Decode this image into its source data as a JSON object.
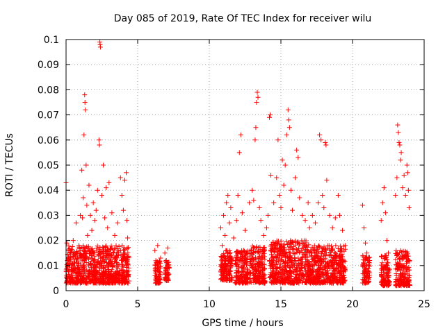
{
  "chart_data": {
    "type": "scatter",
    "title": "Day 085 of 2019, Rate Of TEC Index for receiver wilu",
    "xlabel": "GPS time / hours",
    "ylabel": "ROTI / TECUs",
    "xlim": [
      0,
      25
    ],
    "ylim": [
      0,
      0.1
    ],
    "xticks": [
      0,
      5,
      10,
      15,
      20,
      25
    ],
    "xtick_labels": [
      "0",
      "5",
      "10",
      "15",
      "20",
      "25"
    ],
    "yticks": [
      0,
      0.01,
      0.02,
      0.03,
      0.04,
      0.05,
      0.06,
      0.07,
      0.08,
      0.09,
      0.1
    ],
    "ytick_labels": [
      "0",
      "0.01",
      "0.02",
      "0.03",
      "0.04",
      "0.05",
      "0.06",
      "0.07",
      "0.08",
      "0.09",
      "0.1"
    ],
    "grid": true,
    "marker": "+",
    "series_color": "#ff0000",
    "series": [
      {
        "name": "ROTI",
        "points": [
          [
            0.0,
            0.043
          ],
          [
            0.05,
            0.019
          ],
          [
            0.1,
            0.012
          ],
          [
            0.2,
            0.008
          ],
          [
            0.3,
            0.015
          ],
          [
            0.4,
            0.011
          ],
          [
            0.5,
            0.02
          ],
          [
            0.6,
            0.009
          ],
          [
            0.7,
            0.027
          ],
          [
            0.8,
            0.013
          ],
          [
            0.9,
            0.018
          ],
          [
            1.0,
            0.03
          ],
          [
            1.1,
            0.048
          ],
          [
            1.15,
            0.029
          ],
          [
            1.2,
            0.037
          ],
          [
            1.25,
            0.062
          ],
          [
            1.3,
            0.078
          ],
          [
            1.32,
            0.075
          ],
          [
            1.35,
            0.072
          ],
          [
            1.4,
            0.05
          ],
          [
            1.45,
            0.034
          ],
          [
            1.5,
            0.022
          ],
          [
            1.6,
            0.042
          ],
          [
            1.7,
            0.03
          ],
          [
            1.8,
            0.024
          ],
          [
            1.9,
            0.035
          ],
          [
            2.0,
            0.028
          ],
          [
            2.1,
            0.032
          ],
          [
            2.2,
            0.04
          ],
          [
            2.3,
            0.06
          ],
          [
            2.33,
            0.058
          ],
          [
            2.36,
            0.099
          ],
          [
            2.38,
            0.098
          ],
          [
            2.4,
            0.097
          ],
          [
            2.5,
            0.038
          ],
          [
            2.6,
            0.05
          ],
          [
            2.7,
            0.029
          ],
          [
            2.8,
            0.041
          ],
          [
            2.9,
            0.025
          ],
          [
            3.0,
            0.043
          ],
          [
            3.2,
            0.031
          ],
          [
            3.4,
            0.022
          ],
          [
            3.6,
            0.027
          ],
          [
            3.8,
            0.045
          ],
          [
            3.9,
            0.038
          ],
          [
            4.0,
            0.032
          ],
          [
            4.1,
            0.044
          ],
          [
            4.2,
            0.047
          ],
          [
            4.25,
            0.028
          ],
          [
            4.3,
            0.021
          ],
          [
            6.2,
            0.016
          ],
          [
            6.3,
            0.011
          ],
          [
            6.4,
            0.018
          ],
          [
            6.5,
            0.009
          ],
          [
            6.6,
            0.013
          ],
          [
            6.9,
            0.015
          ],
          [
            7.0,
            0.012
          ],
          [
            7.1,
            0.017
          ],
          [
            7.2,
            0.009
          ],
          [
            10.8,
            0.025
          ],
          [
            10.9,
            0.018
          ],
          [
            11.0,
            0.03
          ],
          [
            11.1,
            0.022
          ],
          [
            11.2,
            0.035
          ],
          [
            11.3,
            0.038
          ],
          [
            11.4,
            0.027
          ],
          [
            11.5,
            0.033
          ],
          [
            11.7,
            0.021
          ],
          [
            11.9,
            0.028
          ],
          [
            12.0,
            0.038
          ],
          [
            12.1,
            0.055
          ],
          [
            12.2,
            0.062
          ],
          [
            12.3,
            0.031
          ],
          [
            12.5,
            0.024
          ],
          [
            12.8,
            0.035
          ],
          [
            13.0,
            0.04
          ],
          [
            13.1,
            0.036
          ],
          [
            13.2,
            0.06
          ],
          [
            13.25,
            0.065
          ],
          [
            13.3,
            0.075
          ],
          [
            13.35,
            0.079
          ],
          [
            13.4,
            0.077
          ],
          [
            13.5,
            0.033
          ],
          [
            13.6,
            0.028
          ],
          [
            13.8,
            0.022
          ],
          [
            14.0,
            0.025
          ],
          [
            14.1,
            0.03
          ],
          [
            14.2,
            0.069
          ],
          [
            14.25,
            0.07
          ],
          [
            14.3,
            0.046
          ],
          [
            14.5,
            0.035
          ],
          [
            14.7,
            0.045
          ],
          [
            14.8,
            0.06
          ],
          [
            14.9,
            0.038
          ],
          [
            15.0,
            0.033
          ],
          [
            15.1,
            0.052
          ],
          [
            15.2,
            0.042
          ],
          [
            15.3,
            0.05
          ],
          [
            15.4,
            0.062
          ],
          [
            15.5,
            0.072
          ],
          [
            15.55,
            0.068
          ],
          [
            15.6,
            0.065
          ],
          [
            15.7,
            0.04
          ],
          [
            15.8,
            0.032
          ],
          [
            16.0,
            0.045
          ],
          [
            16.1,
            0.056
          ],
          [
            16.2,
            0.053
          ],
          [
            16.3,
            0.037
          ],
          [
            16.5,
            0.03
          ],
          [
            16.7,
            0.028
          ],
          [
            16.9,
            0.035
          ],
          [
            17.0,
            0.025
          ],
          [
            17.2,
            0.03
          ],
          [
            17.4,
            0.027
          ],
          [
            17.6,
            0.035
          ],
          [
            17.7,
            0.062
          ],
          [
            17.8,
            0.06
          ],
          [
            17.9,
            0.038
          ],
          [
            18.0,
            0.033
          ],
          [
            18.1,
            0.059
          ],
          [
            18.15,
            0.058
          ],
          [
            18.2,
            0.044
          ],
          [
            18.4,
            0.03
          ],
          [
            18.6,
            0.025
          ],
          [
            18.8,
            0.029
          ],
          [
            19.0,
            0.038
          ],
          [
            19.1,
            0.03
          ],
          [
            19.3,
            0.024
          ],
          [
            19.5,
            0.018
          ],
          [
            20.7,
            0.034
          ],
          [
            20.8,
            0.025
          ],
          [
            20.9,
            0.019
          ],
          [
            21.0,
            0.015
          ],
          [
            21.1,
            0.012
          ],
          [
            22.0,
            0.028
          ],
          [
            22.1,
            0.035
          ],
          [
            22.2,
            0.041
          ],
          [
            22.3,
            0.031
          ],
          [
            22.4,
            0.02
          ],
          [
            22.5,
            0.015
          ],
          [
            23.0,
            0.038
          ],
          [
            23.1,
            0.045
          ],
          [
            23.15,
            0.066
          ],
          [
            23.2,
            0.063
          ],
          [
            23.25,
            0.059
          ],
          [
            23.3,
            0.058
          ],
          [
            23.35,
            0.052
          ],
          [
            23.4,
            0.055
          ],
          [
            23.5,
            0.041
          ],
          [
            23.6,
            0.046
          ],
          [
            23.7,
            0.038
          ],
          [
            23.8,
            0.05
          ],
          [
            23.85,
            0.047
          ],
          [
            23.9,
            0.04
          ],
          [
            23.95,
            0.033
          ]
        ]
      }
    ],
    "dense_bands": [
      {
        "x": [
          0.0,
          4.4
        ],
        "y": [
          0.003,
          0.018
        ]
      },
      {
        "x": [
          6.2,
          6.6
        ],
        "y": [
          0.003,
          0.012
        ]
      },
      {
        "x": [
          6.9,
          7.2
        ],
        "y": [
          0.004,
          0.012
        ]
      },
      {
        "x": [
          10.8,
          11.6
        ],
        "y": [
          0.004,
          0.016
        ]
      },
      {
        "x": [
          11.8,
          12.7
        ],
        "y": [
          0.003,
          0.016
        ]
      },
      {
        "x": [
          12.8,
          13.9
        ],
        "y": [
          0.003,
          0.018
        ]
      },
      {
        "x": [
          14.2,
          17.0
        ],
        "y": [
          0.003,
          0.02
        ]
      },
      {
        "x": [
          17.0,
          19.5
        ],
        "y": [
          0.003,
          0.018
        ]
      },
      {
        "x": [
          20.7,
          21.2
        ],
        "y": [
          0.003,
          0.014
        ]
      },
      {
        "x": [
          22.0,
          22.6
        ],
        "y": [
          0.002,
          0.014
        ]
      },
      {
        "x": [
          23.0,
          24.0
        ],
        "y": [
          0.002,
          0.016
        ]
      }
    ]
  }
}
